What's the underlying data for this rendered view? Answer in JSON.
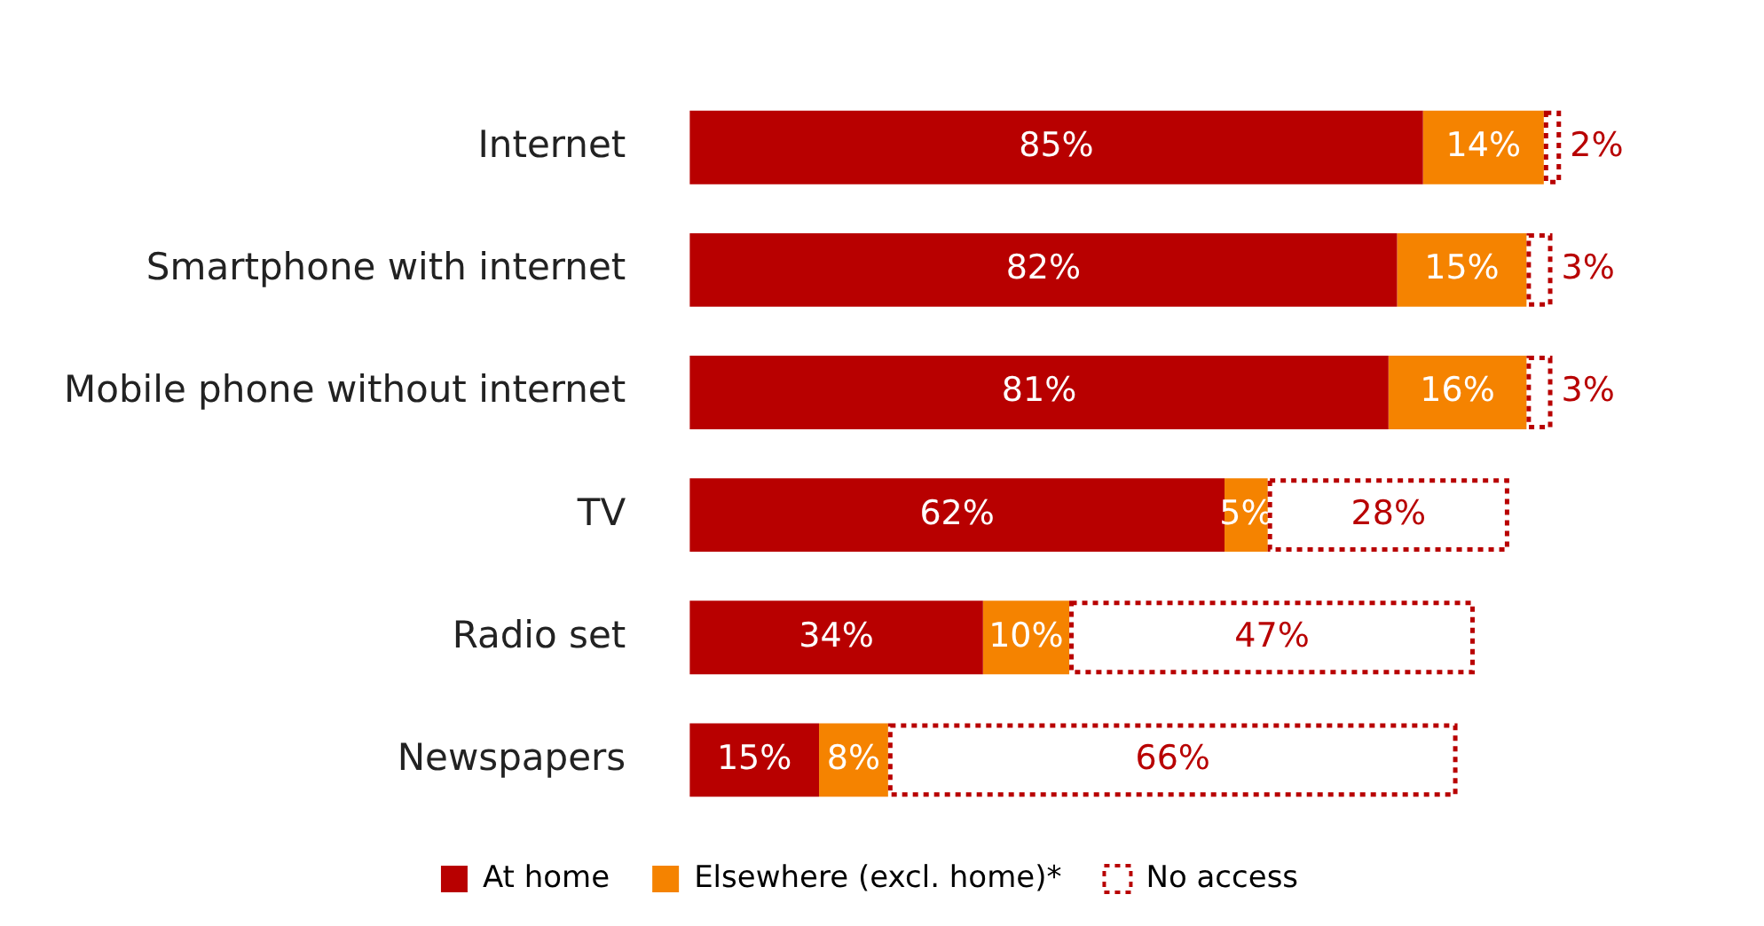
{
  "chart_data": {
    "type": "bar",
    "orientation": "horizontal",
    "stacked": true,
    "legend": "bottom",
    "grid": false,
    "tick_labels": "y",
    "categories": [
      "Internet",
      "Smartphone with internet",
      "Mobile phone without internet",
      "TV",
      "Radio set",
      "Newspapers"
    ],
    "series": [
      {
        "name": "At home",
        "color": "#b80000",
        "values": [
          85,
          82,
          81,
          62,
          34,
          15
        ],
        "value_labels": [
          "85%",
          "82%",
          "81%",
          "62%",
          "34%",
          "15%"
        ]
      },
      {
        "name": "Elsewhere (excl. home)*",
        "color": "#f58300",
        "values": [
          14,
          15,
          16,
          5,
          10,
          8
        ],
        "value_labels": [
          "14%",
          "15%",
          "16%",
          "5%",
          "10%",
          "8%"
        ]
      },
      {
        "name": "No access",
        "color": "#b80000",
        "line_style": "dotted",
        "values": [
          2,
          3,
          3,
          28,
          47,
          66
        ],
        "value_labels": [
          "2%",
          "3%",
          "3%",
          "28%",
          "47%",
          "66%"
        ]
      }
    ]
  }
}
